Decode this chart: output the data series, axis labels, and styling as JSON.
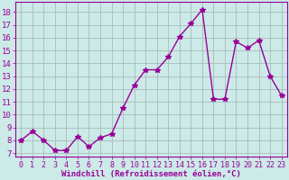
{
  "x": [
    0,
    1,
    2,
    3,
    4,
    5,
    6,
    7,
    8,
    9,
    10,
    11,
    12,
    13,
    14,
    15,
    16,
    17,
    18,
    19,
    20,
    21,
    22,
    23
  ],
  "y": [
    8.0,
    8.7,
    8.0,
    7.2,
    7.2,
    8.3,
    7.5,
    8.2,
    8.5,
    10.5,
    12.3,
    13.5,
    13.5,
    14.5,
    16.1,
    17.1,
    18.2,
    11.2,
    11.2,
    15.7,
    15.2,
    15.8,
    13.0,
    11.5
  ],
  "line_color": "#990099",
  "marker": "*",
  "marker_size": 4,
  "linewidth": 1.0,
  "xlabel": "Windchill (Refroidissement éolien,°C)",
  "ylabel_ticks": [
    7,
    8,
    9,
    10,
    11,
    12,
    13,
    14,
    15,
    16,
    17,
    18
  ],
  "ylim": [
    6.7,
    18.8
  ],
  "xlim": [
    -0.5,
    23.5
  ],
  "bg_color": "#cceae7",
  "grid_color": "#aabbbb",
  "tick_color": "#990099",
  "xlabel_color": "#990099",
  "xlabel_fontsize": 6.5,
  "ytick_fontsize": 6.5,
  "xtick_fontsize": 6.0
}
